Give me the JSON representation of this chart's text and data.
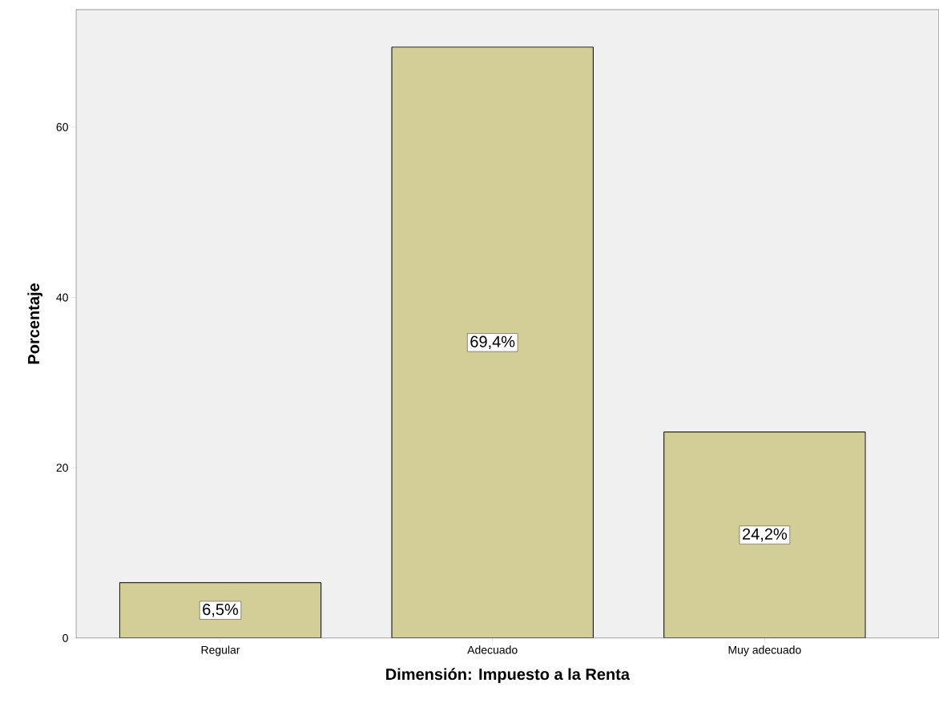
{
  "chart_data": {
    "type": "bar",
    "xlabel": "Dimensión: Impuesto a la Renta",
    "ylabel": "Porcentaje",
    "categories": [
      "Regular",
      "Adecuado",
      "Muy adecuado"
    ],
    "values": [
      6.5,
      69.4,
      24.2
    ],
    "value_labels": [
      "6,5%",
      "69,4%",
      "24,2%"
    ],
    "color": "#d3ce97",
    "ylim": [
      0,
      73.8
    ],
    "yticks": [
      0,
      20,
      40,
      60
    ]
  }
}
